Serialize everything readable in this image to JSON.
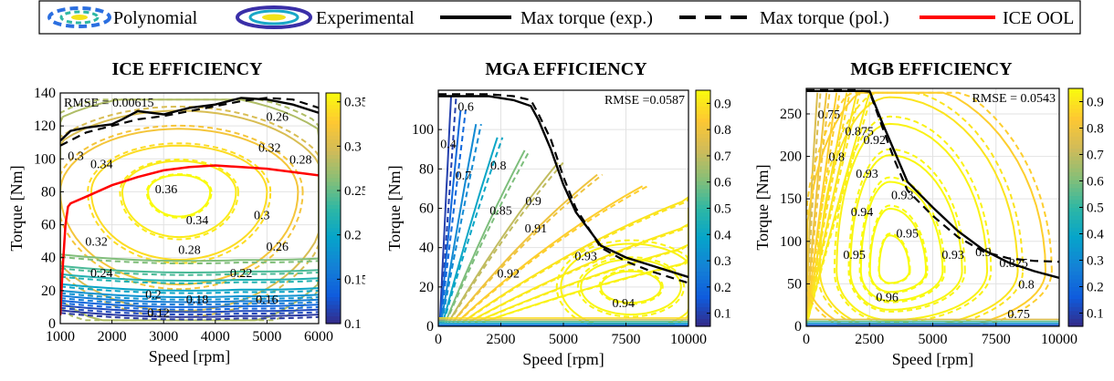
{
  "legend": {
    "items": [
      {
        "label": "Polynomial",
        "symbol": "dashed-contour"
      },
      {
        "label": "Experimental",
        "symbol": "solid-contour"
      },
      {
        "label": "Max torque (exp.)",
        "symbol": "solid-line"
      },
      {
        "label": "Max torque (pol.)",
        "symbol": "dashed-line"
      },
      {
        "label": "ICE OOL",
        "symbol": "red-line"
      }
    ],
    "colors": {
      "line": "#000000",
      "ool": "#ff0000"
    }
  },
  "colormap": [
    "#352a87",
    "#0f5cdd",
    "#1481d6",
    "#06a4ca",
    "#2eb7a4",
    "#87bf77",
    "#d1bb59",
    "#fec832",
    "#f9fb0e"
  ],
  "chart_data": [
    {
      "type": "contour",
      "title": "ICE EFFICIENCY",
      "xlabel": "Speed [rpm]",
      "ylabel": "Torque [Nm]",
      "xlim": [
        1000,
        6000
      ],
      "ylim": [
        0,
        140
      ],
      "xticks": [
        1000,
        2000,
        3000,
        4000,
        5000,
        6000
      ],
      "yticks": [
        0,
        20,
        40,
        60,
        80,
        100,
        120,
        140
      ],
      "rmse_text": "RMSE = 0.00615",
      "colorbar": {
        "min": 0.1,
        "max": 0.36,
        "ticks": [
          0.1,
          0.15,
          0.2,
          0.25,
          0.3,
          0.35
        ],
        "labels": [
          "0.1",
          "0.15",
          "0.2",
          "0.25",
          "0.3",
          "0.35"
        ]
      },
      "contour_labels": [
        {
          "text": "0.3",
          "x": 1300,
          "y": 102,
          "value": 0.3
        },
        {
          "text": "0.34",
          "x": 1800,
          "y": 97,
          "value": 0.34
        },
        {
          "text": "0.36",
          "x": 3050,
          "y": 82,
          "value": 0.36
        },
        {
          "text": "0.34",
          "x": 3650,
          "y": 63,
          "value": 0.34
        },
        {
          "text": "0.32",
          "x": 1700,
          "y": 50,
          "value": 0.32
        },
        {
          "text": "0.28",
          "x": 3500,
          "y": 45,
          "value": 0.28
        },
        {
          "text": "0.3",
          "x": 4900,
          "y": 66,
          "value": 0.3
        },
        {
          "text": "0.26",
          "x": 5200,
          "y": 47,
          "value": 0.26
        },
        {
          "text": "0.32",
          "x": 5050,
          "y": 107,
          "value": 0.32
        },
        {
          "text": "0.26",
          "x": 5200,
          "y": 126,
          "value": 0.26
        },
        {
          "text": "0.28",
          "x": 5650,
          "y": 100,
          "value": 0.28
        },
        {
          "text": "0.24",
          "x": 1800,
          "y": 31,
          "value": 0.24
        },
        {
          "text": "0.22",
          "x": 4500,
          "y": 31,
          "value": 0.22
        },
        {
          "text": "0.2",
          "x": 2800,
          "y": 18,
          "value": 0.2
        },
        {
          "text": "0.18",
          "x": 3650,
          "y": 15,
          "value": 0.18
        },
        {
          "text": "0.16",
          "x": 5000,
          "y": 15,
          "value": 0.16
        },
        {
          "text": "0.12",
          "x": 2900,
          "y": 7,
          "value": 0.12
        }
      ],
      "max_torque_exp": {
        "x": [
          1000,
          1200,
          1500,
          2000,
          2200,
          2500,
          3000,
          3500,
          4000,
          4500,
          5000,
          5500,
          6000
        ],
        "y": [
          111,
          117,
          119,
          121,
          124,
          129,
          127,
          131,
          133,
          137,
          136,
          133,
          128
        ]
      },
      "max_torque_pol": {
        "x": [
          1000,
          1500,
          2000,
          2500,
          3000,
          3500,
          4000,
          4500,
          5000,
          5500,
          6000
        ],
        "y": [
          108,
          116,
          120,
          124,
          126,
          129,
          132,
          135,
          137,
          136,
          131
        ]
      },
      "ool": {
        "x": [
          1000,
          1050,
          1100,
          1150,
          1200,
          1500,
          2000,
          2500,
          3000,
          3500,
          4000,
          4500,
          5000,
          5500,
          6000
        ],
        "y": [
          5,
          35,
          60,
          71,
          73,
          77,
          84,
          89,
          93,
          95,
          96,
          95,
          94,
          92,
          90
        ]
      }
    },
    {
      "type": "contour",
      "title": "MGA EFFICIENCY",
      "xlabel": "Speed [rpm]",
      "ylabel": "Torque [Nm]",
      "xlim": [
        0,
        10000
      ],
      "ylim": [
        0,
        120
      ],
      "xticks": [
        0,
        2500,
        5000,
        7500,
        10000
      ],
      "yticks": [
        0,
        20,
        40,
        60,
        80,
        100
      ],
      "rmse_text": "RMSE =0.0587",
      "colorbar": {
        "min": 0.05,
        "max": 0.95,
        "ticks": [
          0.1,
          0.2,
          0.3,
          0.4,
          0.5,
          0.6,
          0.7,
          0.8,
          0.9
        ],
        "labels": [
          "0.1",
          "0.2",
          "0.3",
          "0.4",
          "0.5",
          "0.6",
          "0.7",
          "0.8",
          "0.9"
        ]
      },
      "contour_labels": [
        {
          "text": "0.4",
          "x": 400,
          "y": 93,
          "value": 0.4
        },
        {
          "text": "0.6",
          "x": 1100,
          "y": 112,
          "value": 0.6
        },
        {
          "text": "0.7",
          "x": 1000,
          "y": 77,
          "value": 0.7
        },
        {
          "text": "0.8",
          "x": 2400,
          "y": 82,
          "value": 0.8
        },
        {
          "text": "0.85",
          "x": 2500,
          "y": 59,
          "value": 0.85
        },
        {
          "text": "0.9",
          "x": 3800,
          "y": 64,
          "value": 0.9
        },
        {
          "text": "0.91",
          "x": 3900,
          "y": 50,
          "value": 0.91
        },
        {
          "text": "0.93",
          "x": 5900,
          "y": 36,
          "value": 0.93
        },
        {
          "text": "0.92",
          "x": 2800,
          "y": 27,
          "value": 0.92
        },
        {
          "text": "0.94",
          "x": 7400,
          "y": 12,
          "value": 0.94
        }
      ],
      "max_torque_exp": {
        "x": [
          0,
          1000,
          2000,
          3000,
          3700,
          4000,
          4500,
          5000,
          5500,
          6500,
          7500,
          8500,
          9500,
          10000
        ],
        "y": [
          117,
          117,
          117,
          115,
          112,
          105,
          90,
          72,
          58,
          41,
          35,
          31,
          27,
          25
        ]
      },
      "max_torque_pol": {
        "x": [
          0,
          1000,
          2000,
          3000,
          3700,
          4000,
          4500,
          5000,
          5500,
          6500,
          7500,
          8500,
          9500,
          10000
        ],
        "y": [
          118,
          118,
          118,
          117,
          115,
          108,
          95,
          76,
          60,
          40,
          33,
          28,
          24,
          22
        ]
      }
    },
    {
      "type": "contour",
      "title": "MGB EFFICIENCY",
      "xlabel": "Speed [rpm]",
      "ylabel": "Torque [Nm]",
      "xlim": [
        0,
        10000
      ],
      "ylim": [
        0,
        280
      ],
      "xticks": [
        0,
        2500,
        5000,
        7500,
        10000
      ],
      "yticks": [
        0,
        50,
        100,
        150,
        200,
        250
      ],
      "rmse_text": "RMSE = 0.0543",
      "colorbar": {
        "min": 0.05,
        "max": 0.95,
        "ticks": [
          0.1,
          0.2,
          0.3,
          0.4,
          0.5,
          0.6,
          0.7,
          0.8,
          0.9
        ],
        "labels": [
          "0.1",
          "0.2",
          "0.3",
          "0.4",
          "0.5",
          "0.6",
          "0.7",
          "0.8",
          "0.9"
        ]
      },
      "contour_labels": [
        {
          "text": "0.75",
          "x": 900,
          "y": 250,
          "value": 0.75
        },
        {
          "text": "0.875",
          "x": 2100,
          "y": 230,
          "value": 0.875
        },
        {
          "text": "0.8",
          "x": 1200,
          "y": 200,
          "value": 0.8
        },
        {
          "text": "0.92",
          "x": 2700,
          "y": 220,
          "value": 0.92
        },
        {
          "text": "0.93",
          "x": 2400,
          "y": 180,
          "value": 0.93
        },
        {
          "text": "0.93",
          "x": 3800,
          "y": 155,
          "value": 0.93
        },
        {
          "text": "0.94",
          "x": 2200,
          "y": 135,
          "value": 0.94
        },
        {
          "text": "0.95",
          "x": 4000,
          "y": 110,
          "value": 0.95
        },
        {
          "text": "0.95",
          "x": 1900,
          "y": 85,
          "value": 0.95
        },
        {
          "text": "0.93",
          "x": 5800,
          "y": 85,
          "value": 0.93
        },
        {
          "text": "0.9",
          "x": 7000,
          "y": 88,
          "value": 0.9
        },
        {
          "text": "0.825",
          "x": 8200,
          "y": 75,
          "value": 0.825
        },
        {
          "text": "0.8",
          "x": 8700,
          "y": 50,
          "value": 0.8
        },
        {
          "text": "0.96",
          "x": 3200,
          "y": 35,
          "value": 0.96
        },
        {
          "text": "0.75",
          "x": 8400,
          "y": 15,
          "value": 0.75
        }
      ],
      "max_torque_exp": {
        "x": [
          0,
          1000,
          2000,
          2500,
          3000,
          3500,
          4000,
          5000,
          6000,
          7000,
          8000,
          9000,
          10000
        ],
        "y": [
          277,
          277,
          277,
          277,
          240,
          205,
          170,
          140,
          112,
          90,
          75,
          65,
          57
        ]
      },
      "max_torque_pol": {
        "x": [
          0,
          1000,
          2000,
          2500,
          3000,
          3500,
          4000,
          5000,
          6000,
          7000,
          8000,
          9000,
          10000
        ],
        "y": [
          278,
          278,
          278,
          276,
          235,
          195,
          160,
          130,
          105,
          88,
          80,
          77,
          76
        ]
      }
    }
  ]
}
